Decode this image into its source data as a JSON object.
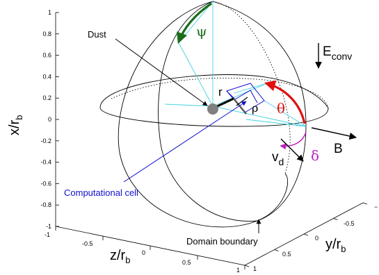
{
  "axes": {
    "x_label": "x/r",
    "x_label_sub": "b",
    "y_label": "y/r",
    "y_label_sub": "b",
    "z_label": "z/r",
    "z_label_sub": "b",
    "x_ticks": [
      "1",
      "0.8",
      "0.6",
      "0.4",
      "0.2",
      "0",
      "-0.2",
      "-0.4",
      "-0.6",
      "-0.8",
      "-1"
    ],
    "z_ticks": [
      "-1",
      "-0.5",
      "0",
      "0.5",
      "1"
    ],
    "y_ticks": [
      "1",
      "0.5",
      "0",
      "-0.5",
      "−"
    ]
  },
  "labels": {
    "dust": "Dust",
    "computational_cell": "Computational cell",
    "domain_boundary": "Domain boundary",
    "r": "r",
    "rho": "ρ",
    "theta": "θ",
    "psi": "ψ",
    "delta": "δ",
    "e_conv": "E",
    "e_conv_sub": "conv",
    "v_d": "v",
    "v_d_sub": "d",
    "b": "B"
  },
  "colors": {
    "psi_arc": "#1a6e1a",
    "theta_arc": "#e01010",
    "delta_arc": "#c020c0",
    "cell_pointer": "#1010d0",
    "cyan_lines": "#40d0e0",
    "dust_fill": "#808080"
  }
}
